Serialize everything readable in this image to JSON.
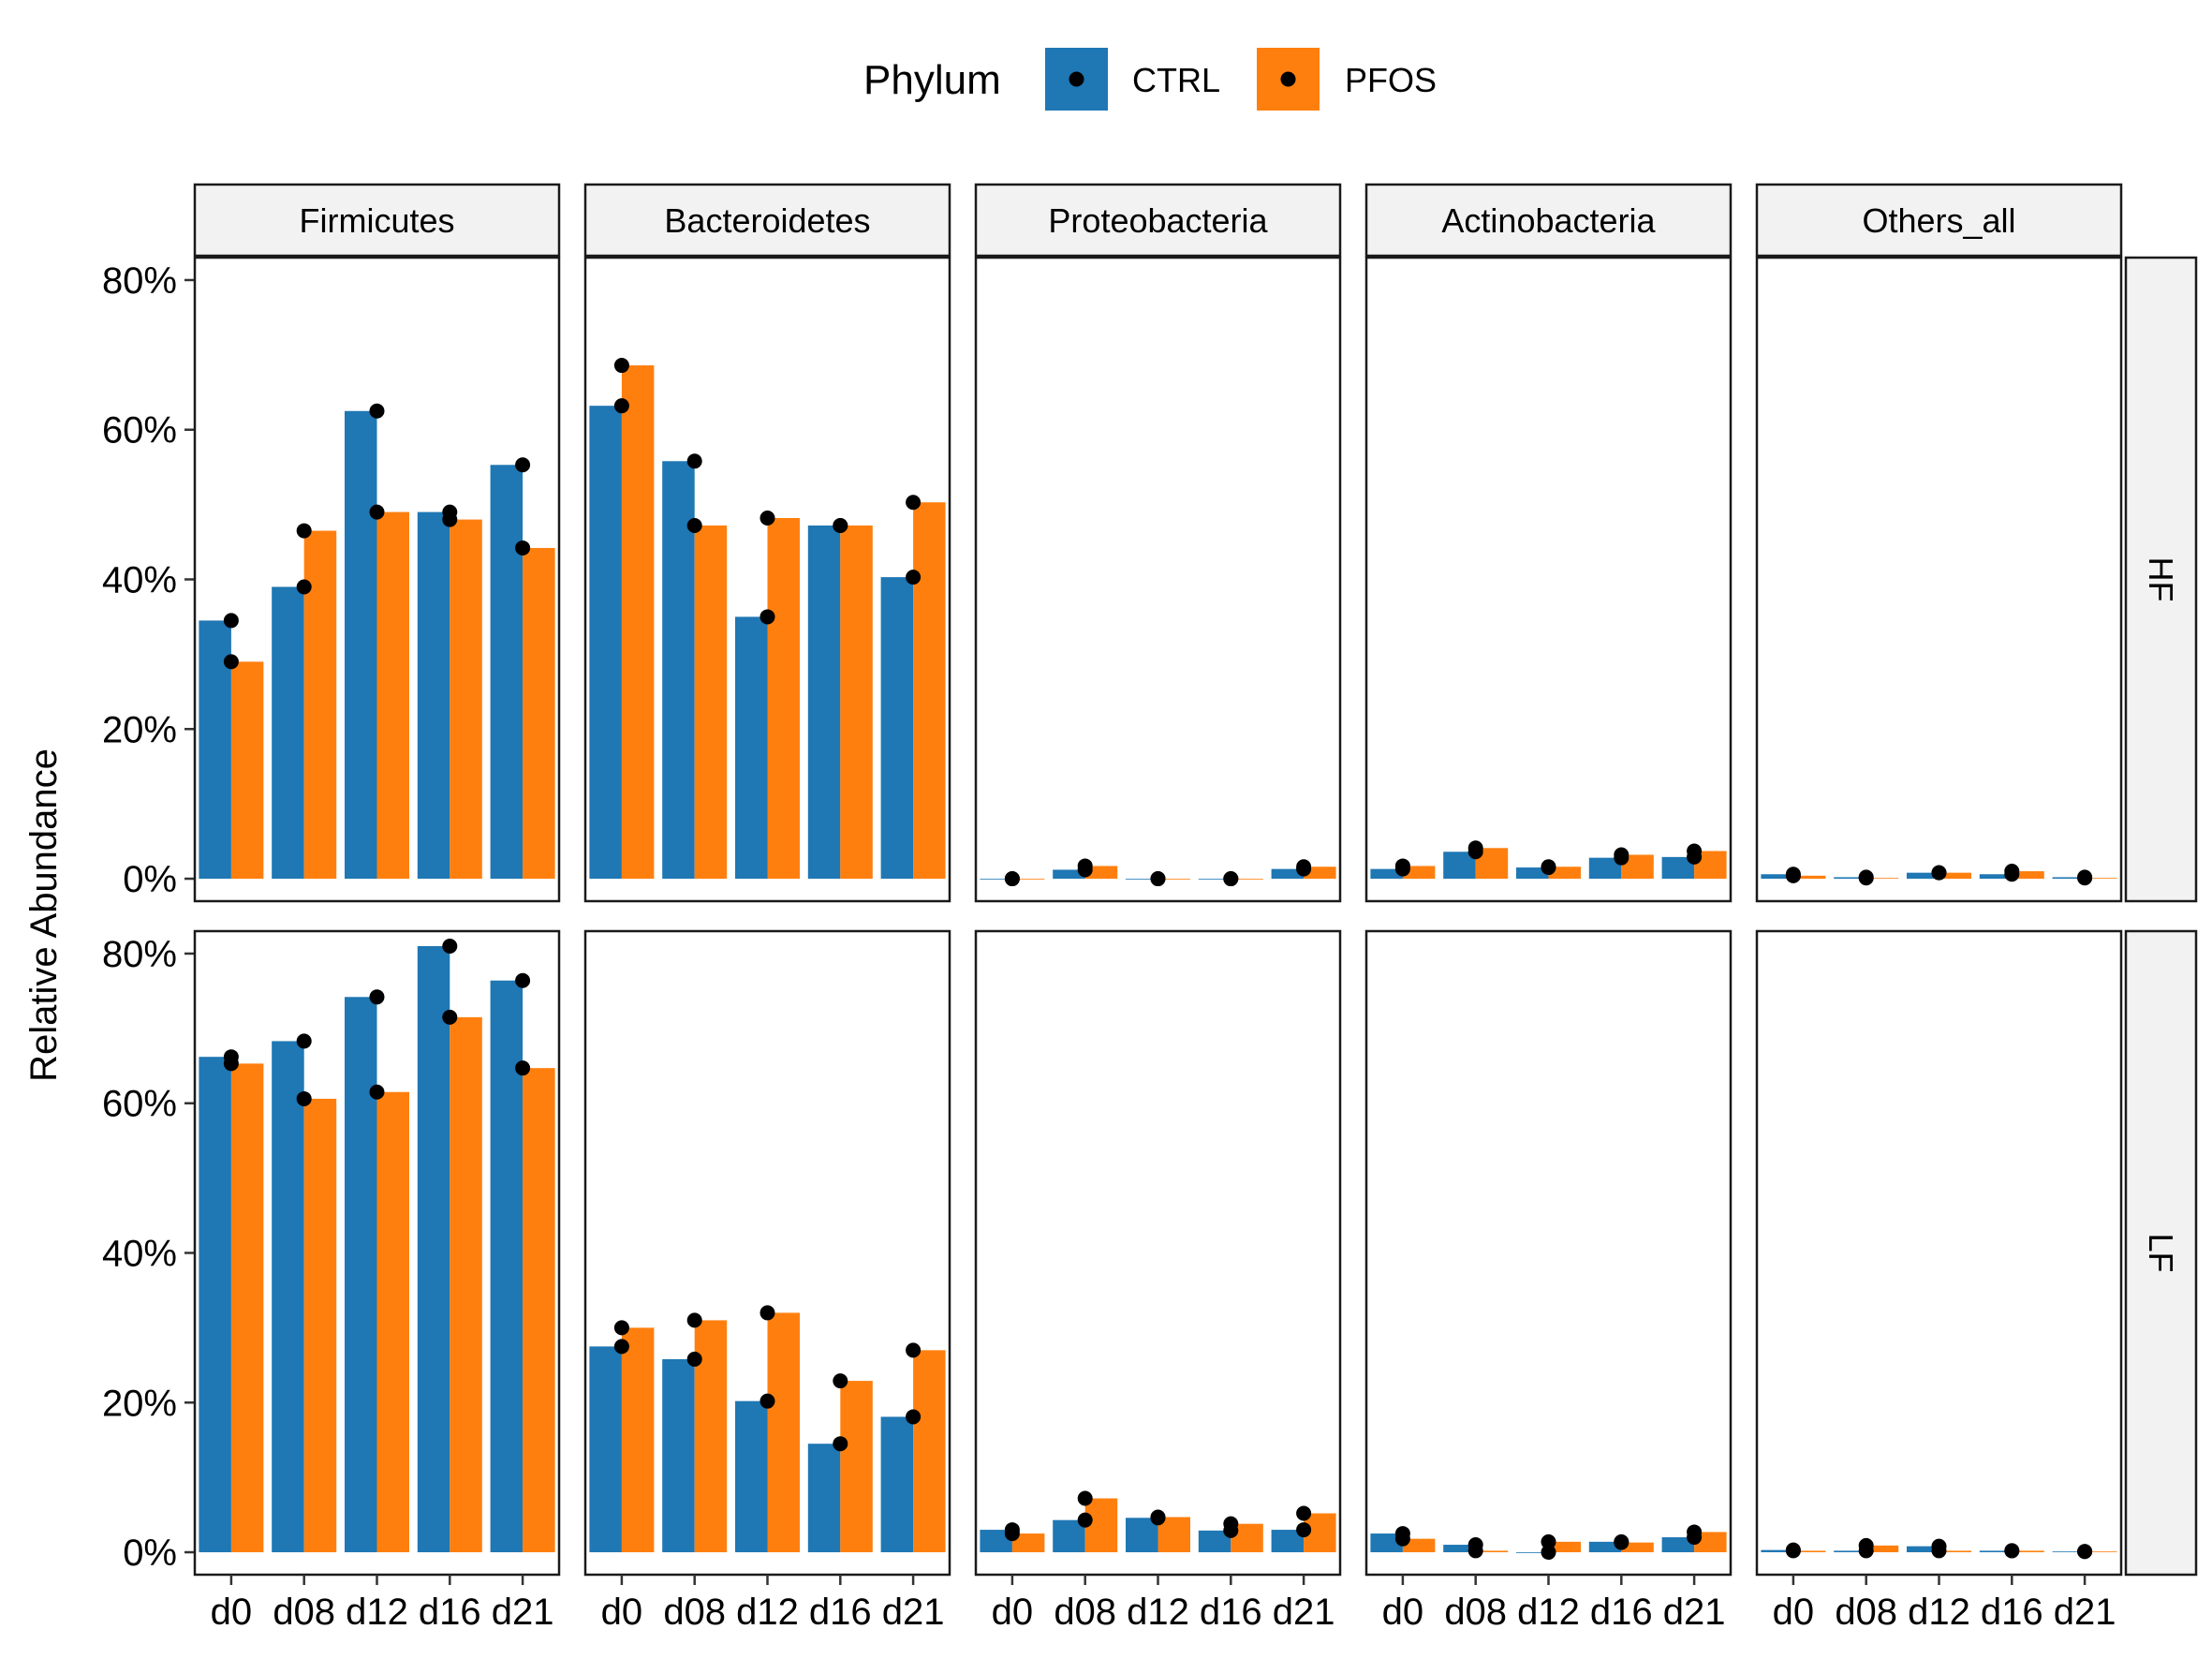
{
  "chart_data": {
    "type": "bar",
    "ylabel": "Relative Abundance",
    "legend": {
      "title": "Phylum",
      "position": "top",
      "items": [
        {
          "label": "CTRL",
          "color": "#1f77b4"
        },
        {
          "label": "PFOS",
          "color": "#ff7f0e"
        }
      ]
    },
    "y_ticks": [
      "0%",
      "20%",
      "40%",
      "60%",
      "80%"
    ],
    "y_tick_values": [
      0,
      20,
      40,
      60,
      80
    ],
    "ylim": [
      -3,
      83
    ],
    "categories": [
      "d0",
      "d08",
      "d12",
      "d16",
      "d21"
    ],
    "columns": [
      "Firmicutes",
      "Bacteroidetes",
      "Proteobacteria",
      "Actinobacteria",
      "Others_all"
    ],
    "rows": [
      "HF",
      "LF"
    ],
    "series": [
      "CTRL",
      "PFOS"
    ],
    "panels": [
      {
        "row": "HF",
        "column": "Firmicutes",
        "values": {
          "CTRL": [
            34.5,
            39.0,
            62.5,
            49.0,
            55.3
          ],
          "PFOS": [
            29.0,
            46.5,
            49.0,
            48.0,
            44.2
          ]
        },
        "points": {
          "CTRL": [
            [
              34.5,
              29.0
            ],
            [
              39.0,
              46.5
            ],
            [
              62.5,
              49.0
            ],
            [
              49.0,
              48.0
            ],
            [
              55.3,
              44.2
            ]
          ],
          "PFOS": []
        }
      },
      {
        "row": "HF",
        "column": "Bacteroidetes",
        "values": {
          "CTRL": [
            63.2,
            55.8,
            35.0,
            47.2,
            40.3
          ],
          "PFOS": [
            68.6,
            47.2,
            48.2,
            47.2,
            50.3
          ]
        },
        "points": {
          "CTRL": [
            [
              63.2,
              68.6
            ],
            [
              55.8,
              47.2
            ],
            [
              35.0,
              48.2
            ],
            [
              47.2,
              47.2
            ],
            [
              40.3,
              50.3
            ]
          ],
          "PFOS": []
        }
      },
      {
        "row": "HF",
        "column": "Proteobacteria",
        "values": {
          "CTRL": [
            0,
            1.2,
            0,
            0,
            1.3
          ],
          "PFOS": [
            0,
            1.7,
            0,
            0,
            1.6
          ]
        },
        "points": {
          "CTRL": [
            [
              0,
              0
            ],
            [
              1.2,
              1.7
            ],
            [
              0,
              0
            ],
            [
              0,
              0
            ],
            [
              1.3,
              1.6
            ]
          ],
          "PFOS": []
        }
      },
      {
        "row": "HF",
        "column": "Actinobacteria",
        "values": {
          "CTRL": [
            1.3,
            3.6,
            1.5,
            2.8,
            2.9
          ],
          "PFOS": [
            1.7,
            4.1,
            1.6,
            3.2,
            3.7
          ]
        },
        "points": {
          "CTRL": [
            [
              1.3,
              1.7
            ],
            [
              3.6,
              4.1
            ],
            [
              1.5,
              1.6
            ],
            [
              2.8,
              3.2
            ],
            [
              2.9,
              3.7
            ]
          ],
          "PFOS": []
        }
      },
      {
        "row": "HF",
        "column": "Others_all",
        "values": {
          "CTRL": [
            0.6,
            0.2,
            0.8,
            0.6,
            0.2
          ],
          "PFOS": [
            0.4,
            0.1,
            0.8,
            1.0,
            0.1
          ]
        },
        "points": {
          "CTRL": [
            [
              0.6,
              0.4
            ],
            [
              0.2,
              0.1
            ],
            [
              0.8,
              0.8
            ],
            [
              0.6,
              1.0
            ],
            [
              0.2,
              0.1
            ]
          ],
          "PFOS": []
        }
      },
      {
        "row": "LF",
        "column": "Firmicutes",
        "values": {
          "CTRL": [
            66.2,
            68.3,
            74.2,
            81.0,
            76.4
          ],
          "PFOS": [
            65.3,
            60.6,
            61.5,
            71.5,
            64.7
          ]
        },
        "points": {
          "CTRL": [
            [
              66.2,
              65.3
            ],
            [
              68.3,
              60.6
            ],
            [
              74.2,
              61.5
            ],
            [
              81.0,
              71.5
            ],
            [
              76.4,
              64.7
            ]
          ],
          "PFOS": []
        }
      },
      {
        "row": "LF",
        "column": "Bacteroidetes",
        "values": {
          "CTRL": [
            27.5,
            25.8,
            20.2,
            14.5,
            18.1
          ],
          "PFOS": [
            30.0,
            31.0,
            32.0,
            22.9,
            27.0
          ]
        },
        "points": {
          "CTRL": [
            [
              27.5,
              30.0
            ],
            [
              25.8,
              31.0
            ],
            [
              20.2,
              32.0
            ],
            [
              14.5,
              22.9
            ],
            [
              18.1,
              27.0
            ]
          ],
          "PFOS": []
        }
      },
      {
        "row": "LF",
        "column": "Proteobacteria",
        "values": {
          "CTRL": [
            3.0,
            4.3,
            4.6,
            2.9,
            3.0
          ],
          "PFOS": [
            2.5,
            7.2,
            4.7,
            3.8,
            5.2
          ]
        },
        "points": {
          "CTRL": [
            [
              3.0,
              2.5
            ],
            [
              4.3,
              7.2
            ],
            [
              4.6,
              4.7
            ],
            [
              2.9,
              3.8
            ],
            [
              3.0,
              5.2
            ]
          ],
          "PFOS": []
        }
      },
      {
        "row": "LF",
        "column": "Actinobacteria",
        "values": {
          "CTRL": [
            2.5,
            1.0,
            0,
            1.4,
            2.0
          ],
          "PFOS": [
            1.8,
            0.2,
            1.4,
            1.3,
            2.7
          ]
        },
        "points": {
          "CTRL": [
            [
              2.5,
              1.8
            ],
            [
              1.0,
              0.2
            ],
            [
              0,
              1.4
            ],
            [
              1.4,
              1.3
            ],
            [
              2.0,
              2.7
            ]
          ],
          "PFOS": []
        }
      },
      {
        "row": "LF",
        "column": "Others_all",
        "values": {
          "CTRL": [
            0.3,
            0.2,
            0.8,
            0.2,
            0.1
          ],
          "PFOS": [
            0.2,
            0.9,
            0.2,
            0.2,
            0.1
          ]
        },
        "points": {
          "CTRL": [
            [
              0.3,
              0.2
            ],
            [
              0.2,
              0.9
            ],
            [
              0.8,
              0.2
            ],
            [
              0.2,
              0.2
            ],
            [
              0.1,
              0.1
            ]
          ],
          "PFOS": []
        }
      }
    ],
    "grid": false
  }
}
